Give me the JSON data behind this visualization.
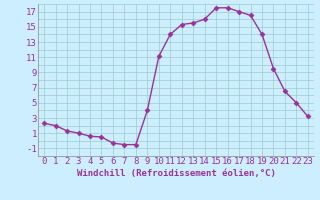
{
  "x": [
    0,
    1,
    2,
    3,
    4,
    5,
    6,
    7,
    8,
    9,
    10,
    11,
    12,
    13,
    14,
    15,
    16,
    17,
    18,
    19,
    20,
    21,
    22,
    23
  ],
  "y": [
    2.3,
    2.0,
    1.3,
    1.0,
    0.6,
    0.5,
    -0.3,
    -0.5,
    -0.5,
    4.0,
    11.1,
    14.0,
    15.3,
    15.5,
    16.0,
    17.5,
    17.5,
    17.0,
    16.5,
    14.0,
    9.5,
    6.5,
    5.0,
    3.2
  ],
  "line_color": "#993399",
  "marker": "D",
  "marker_size": 2.5,
  "bg_color": "#cceeff",
  "grid_color": "#99cccc",
  "xlabel": "Windchill (Refroidissement éolien,°C)",
  "ylim": [
    -2,
    18
  ],
  "xlim": [
    -0.5,
    23.5
  ],
  "yticks": [
    -1,
    1,
    3,
    5,
    7,
    9,
    11,
    13,
    15,
    17
  ],
  "xticks": [
    0,
    1,
    2,
    3,
    4,
    5,
    6,
    7,
    8,
    9,
    10,
    11,
    12,
    13,
    14,
    15,
    16,
    17,
    18,
    19,
    20,
    21,
    22,
    23
  ],
  "xlabel_fontsize": 6.5,
  "tick_fontsize": 6.5,
  "xlabel_color": "#993399",
  "tick_color": "#993399",
  "line_width": 1.0,
  "spine_color": "#888888"
}
